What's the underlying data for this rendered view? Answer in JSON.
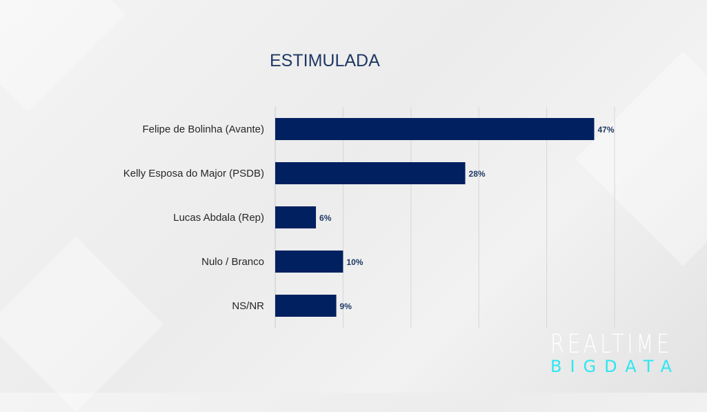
{
  "chart_data": {
    "type": "bar",
    "orientation": "horizontal",
    "title": "ESTIMULADA",
    "categories": [
      "Felipe de Bolinha (Avante)",
      "Kelly Esposa do Major (PSDB)",
      "Lucas Abdala (Rep)",
      "Nulo / Branco",
      "NS/NR"
    ],
    "values": [
      47,
      28,
      6,
      10,
      9
    ],
    "labels": [
      "47%",
      "28%",
      "6%",
      "10%",
      "9%"
    ],
    "xlim": [
      0,
      50
    ],
    "grid": true,
    "grid_step": 10,
    "bar_color": "#002060",
    "xlabel": "",
    "ylabel": ""
  },
  "logo": {
    "line1": "REALTIME",
    "line2": "BIGDATA"
  }
}
